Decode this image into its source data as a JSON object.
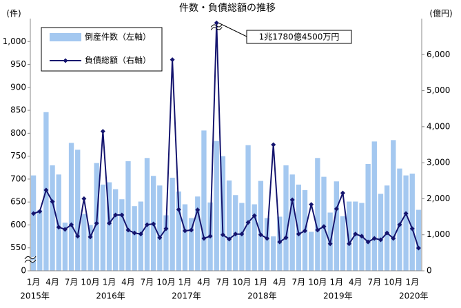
{
  "chart_data": {
    "type": "bar",
    "title": "件数・負債総額の推移",
    "y_unit": "(件)",
    "y2_unit": "(億円)",
    "categories": [
      "1月",
      null,
      null,
      "4月",
      null,
      null,
      "7月",
      null,
      null,
      "10月",
      null,
      null,
      "1月",
      null,
      null,
      "4月",
      null,
      null,
      "7月",
      null,
      null,
      "10月",
      null,
      null,
      "1月",
      null,
      null,
      "4月",
      null,
      null,
      "7月",
      null,
      null,
      "10月",
      null,
      null,
      "1月",
      null,
      null,
      "4月",
      null,
      null,
      "7月",
      null,
      null,
      "10月",
      null,
      null,
      "1月",
      null,
      null,
      "4月",
      null,
      null,
      "7月",
      null,
      null,
      "10月",
      null,
      null,
      "1月",
      null
    ],
    "category_years": [
      "2015年",
      null,
      null,
      null,
      null,
      null,
      null,
      null,
      null,
      null,
      null,
      null,
      "2016年",
      null,
      null,
      null,
      null,
      null,
      null,
      null,
      null,
      null,
      null,
      null,
      "2017年",
      null,
      null,
      null,
      null,
      null,
      null,
      null,
      null,
      null,
      null,
      null,
      "2018年",
      null,
      null,
      null,
      null,
      null,
      null,
      null,
      null,
      null,
      null,
      null,
      "2019年",
      null,
      null,
      null,
      null,
      null,
      null,
      null,
      null,
      null,
      null,
      null,
      "2020年",
      null
    ],
    "series": [
      {
        "name": "倒産件数（左軸）",
        "type": "bar",
        "color": "#a4c8f0",
        "values": [
          708,
          632,
          846,
          730,
          710,
          605,
          779,
          764,
          624,
          600,
          735,
          688,
          693,
          678,
          656,
          739,
          641,
          651,
          746,
          707,
          686,
          621,
          703,
          673,
          645,
          615,
          662,
          806,
          649,
          783,
          750,
          697,
          665,
          648,
          774,
          645,
          696,
          615,
          575,
          618,
          730,
          710,
          688,
          676,
          585,
          746,
          705,
          627,
          695,
          619,
          651,
          651,
          648,
          733,
          782,
          668,
          686,
          785,
          723,
          708,
          712,
          633
        ]
      },
      {
        "name": "負債総額（右軸）",
        "type": "line",
        "axis": "y2",
        "color": "#14146e",
        "values": [
          1590,
          1650,
          2240,
          1920,
          1210,
          1150,
          1280,
          960,
          2000,
          940,
          1320,
          3870,
          1320,
          1550,
          1550,
          1130,
          1050,
          1020,
          1280,
          1300,
          920,
          1170,
          5860,
          1700,
          1110,
          1130,
          1690,
          900,
          960,
          11780.45,
          1000,
          880,
          1020,
          1020,
          1340,
          1530,
          1000,
          900,
          3500,
          800,
          920,
          1970,
          1020,
          1110,
          1840,
          1130,
          1230,
          750,
          1720,
          2160,
          750,
          1020,
          960,
          800,
          900,
          860,
          1050,
          900,
          1280,
          1590,
          1170,
          630
        ]
      }
    ],
    "annotation": "1兆1780億4500万円",
    "ylim": [
      0,
      1050
    ],
    "ybreak": [
      0,
      500
    ],
    "yticks": [
      0,
      550,
      600,
      650,
      700,
      750,
      800,
      850,
      900,
      950,
      {
        "value": 1000,
        "label": "1,000"
      }
    ],
    "y2lim": [
      0,
      11900
    ],
    "y2break": [
      6800,
      11700
    ],
    "y2ticks": [
      0,
      {
        "value": 1000,
        "label": "1,000"
      },
      {
        "value": 2000,
        "label": "2,000"
      },
      {
        "value": 3000,
        "label": "3,000"
      },
      {
        "value": 4000,
        "label": "4,000"
      },
      {
        "value": 5000,
        "label": "5,000"
      },
      {
        "value": 6000,
        "label": "6,000"
      }
    ],
    "legend": "top-left",
    "grid": false
  }
}
